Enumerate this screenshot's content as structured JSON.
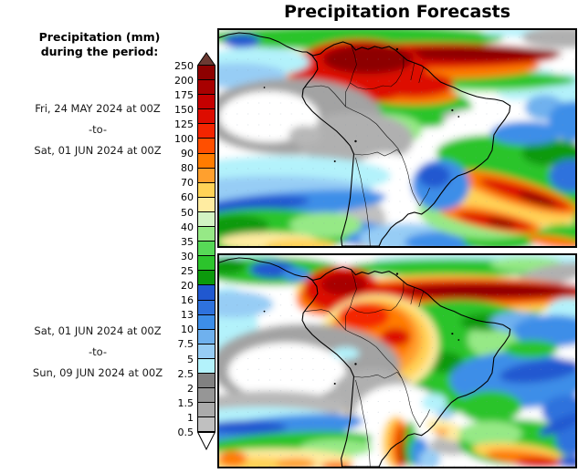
{
  "title": "Precipitation Forecasts",
  "legend": {
    "heading_line1": "Precipitation (mm)",
    "heading_line2": "during the period:"
  },
  "panels": [
    {
      "id": "panel-1",
      "period_start": "Fri, 24 MAY 2024 at 00Z",
      "separator": "-to-",
      "period_end": "Sat, 01 JUN 2024 at 00Z"
    },
    {
      "id": "panel-2",
      "period_start": "Sat, 01 JUN 2024 at 00Z",
      "separator": "-to-",
      "period_end": "Sun, 09 JUN 2024 at 00Z"
    }
  ],
  "colorbar": {
    "unit": "mm",
    "tick_labels": [
      "250",
      "200",
      "175",
      "150",
      "125",
      "100",
      "90",
      "80",
      "70",
      "60",
      "50",
      "40",
      "35",
      "30",
      "25",
      "20",
      "16",
      "13",
      "10",
      "7.5",
      "5",
      "2.5",
      "2",
      "1.5",
      "1",
      "0.5"
    ],
    "segment_colors_top_to_bottom": [
      "#8d0000",
      "#a80000",
      "#c40000",
      "#dd0c00",
      "#f42500",
      "#ff4f00",
      "#ff7c00",
      "#ffa02e",
      "#ffd257",
      "#ffeca1",
      "#d2f3c3",
      "#96e986",
      "#57d957",
      "#2cc42c",
      "#0c9a0c",
      "#2058d0",
      "#2e72dd",
      "#3d8ee8",
      "#6fb1ee",
      "#97cdf5",
      "#b3f2fb",
      "#818181",
      "#969696",
      "#ababab",
      "#c0c0c0"
    ],
    "arrow_top_color": "#6b3a33",
    "arrow_bottom_color": "#ffffff"
  }
}
